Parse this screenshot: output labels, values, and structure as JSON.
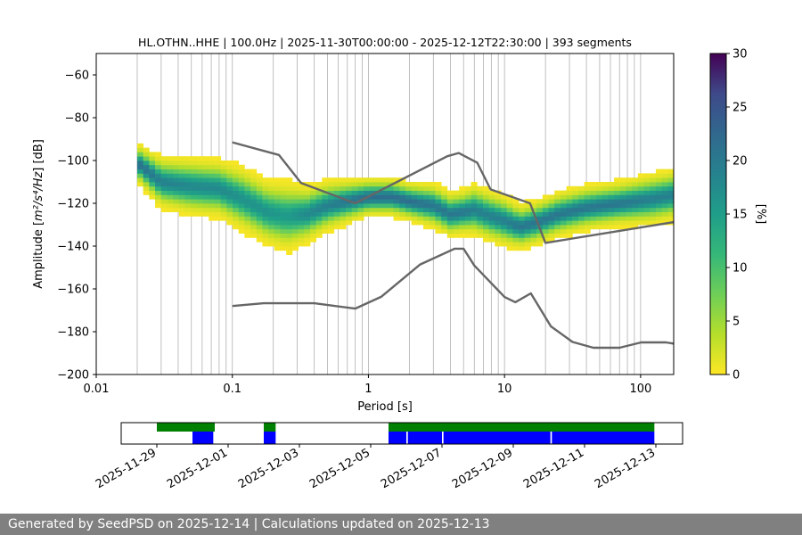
{
  "chart_data": [
    {
      "type": "heatmap",
      "title": "HL.OTHN..HHE | 100.0Hz | 2025-11-30T00:00:00 - 2025-12-12T22:30:00 | 393 segments",
      "xlabel": "Period [s]",
      "ylabel_prefix": "Amplitude [",
      "ylabel_math": "m²/s⁴/Hz",
      "ylabel_suffix": "] [dB]",
      "x_scale": "log",
      "xlim": [
        0.01,
        175
      ],
      "ylim": [
        -200,
        -50
      ],
      "x_ticks": [
        "0.01",
        "0.1",
        "1",
        "10",
        "100"
      ],
      "y_ticks": [
        "−60",
        "−80",
        "−100",
        "−120",
        "−140",
        "−160",
        "−180",
        "−200"
      ],
      "grid": true,
      "colorbar": {
        "label": "[%]",
        "range": [
          0,
          30
        ],
        "ticks": [
          "0",
          "5",
          "10",
          "15",
          "20",
          "25",
          "30"
        ],
        "colormap": "viridis_r"
      },
      "ridge": {
        "period": [
          0.02,
          0.03,
          0.05,
          0.08,
          0.12,
          0.18,
          0.25,
          0.35,
          0.5,
          0.7,
          1,
          1.5,
          2,
          3,
          4,
          5,
          6,
          8,
          10,
          13,
          17,
          25,
          40,
          70,
          120,
          175
        ],
        "median_db": [
          -101,
          -110,
          -112,
          -113,
          -118,
          -124,
          -126,
          -125,
          -121,
          -119,
          -117,
          -117,
          -119,
          -121,
          -125,
          -124,
          -123,
          -126,
          -128,
          -131,
          -129,
          -125,
          -122,
          -120,
          -118,
          -116
        ],
        "spread_db": [
          6,
          8,
          9,
          9,
          10,
          10,
          11,
          9,
          8,
          7,
          6,
          6,
          6,
          7,
          7,
          7,
          8,
          8,
          8,
          7,
          7,
          7,
          7,
          7,
          8,
          8
        ]
      },
      "reference_curves": [
        {
          "period": [
            0.1,
            0.22,
            0.32,
            0.8,
            3.8,
            4.6,
            6.3,
            7.9,
            15.4,
            20,
            175
          ],
          "db": [
            -91.5,
            -97.4,
            -110.5,
            -120,
            -98,
            -96.5,
            -101,
            -113.5,
            -120,
            -138.5,
            -128.8
          ]
        },
        {
          "period": [
            0.1,
            0.17,
            0.4,
            0.8,
            1.24,
            2.4,
            4.3,
            5,
            6,
            10,
            12,
            15.6,
            21.9,
            31.6,
            45,
            70,
            101,
            154,
            175
          ],
          "db": [
            -168,
            -166.7,
            -166.7,
            -169.2,
            -163.7,
            -148.6,
            -141.2,
            -141.2,
            -149.1,
            -163.8,
            -166.2,
            -162.1,
            -177.5,
            -184.8,
            -187.5,
            -187.5,
            -185,
            -185,
            -185.6
          ]
        }
      ],
      "colors": {
        "reference_curve": "#666666",
        "grid": "#b0b0b0"
      }
    },
    {
      "type": "timeline",
      "x_ticks": [
        "2025-11-29",
        "2025-12-01",
        "2025-12-03",
        "2025-12-05",
        "2025-12-07",
        "2025-12-09",
        "2025-12-11",
        "2025-12-13"
      ],
      "xlim": [
        "2025-11-28T00:00",
        "2025-12-13T18:00"
      ],
      "data_available": [
        [
          "2025-11-29T00:00",
          "2025-11-30T15:00"
        ],
        [
          "2025-12-02T00:00",
          "2025-12-02T08:00"
        ],
        [
          "2025-12-05T12:00",
          "2025-12-12T23:00"
        ]
      ],
      "used_segments": [
        [
          "2025-11-30T00:00",
          "2025-11-30T14:00"
        ],
        [
          "2025-12-02T00:00",
          "2025-12-02T08:00"
        ],
        [
          "2025-12-05T12:00",
          "2025-12-06T00:00"
        ],
        [
          "2025-12-06T01:00",
          "2025-12-07T00:00"
        ],
        [
          "2025-12-07T01:00",
          "2025-12-10T01:00"
        ],
        [
          "2025-12-10T02:00",
          "2025-12-12T23:00"
        ]
      ],
      "colors": {
        "available": "#008000",
        "used": "#0000ff"
      }
    }
  ],
  "footer": {
    "text": "Generated by SeedPSD on 2025-12-14 | Calculations updated on 2025-12-13"
  }
}
